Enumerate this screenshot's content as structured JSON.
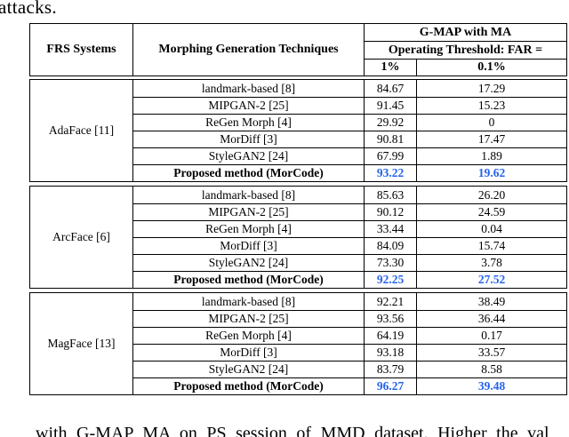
{
  "page": {
    "top_text": "attacks.",
    "caption_bottom": "with G-MAP MA on PS session of MMD dataset. Higher the val"
  },
  "table": {
    "highlight_color": "#2563EB",
    "header": {
      "col_frs": "FRS Systems",
      "col_technique": "Morphing Generation Techniques",
      "span_title": "G-MAP with MA",
      "span_subtitle": "Operating Threshold:  FAR =",
      "col_far1": "1%",
      "col_far01": "0.1%"
    },
    "groups": [
      {
        "frs": "AdaFace [11]",
        "rows": [
          {
            "technique": "landmark-based [8]",
            "far1": "84.67",
            "far01": "17.29"
          },
          {
            "technique": "MIPGAN-2 [25]",
            "far1": "91.45",
            "far01": "15.23"
          },
          {
            "technique": "ReGen Morph [4]",
            "far1": "29.92",
            "far01": "0"
          },
          {
            "technique": "MorDiff [3]",
            "far1": "90.81",
            "far01": "17.47"
          },
          {
            "technique": "StyleGAN2 [24]",
            "far1": "67.99",
            "far01": "1.89"
          },
          {
            "technique": "Proposed method (MorCode)",
            "far1": "93.22",
            "far01": "19.62"
          }
        ]
      },
      {
        "frs": "ArcFace [6]",
        "rows": [
          {
            "technique": "landmark-based [8]",
            "far1": "85.63",
            "far01": "26.20"
          },
          {
            "technique": "MIPGAN-2 [25]",
            "far1": "90.12",
            "far01": "24.59"
          },
          {
            "technique": "ReGen Morph [4]",
            "far1": "33.44",
            "far01": "0.04"
          },
          {
            "technique": "MorDiff [3]",
            "far1": "84.09",
            "far01": "15.74"
          },
          {
            "technique": "StyleGAN2 [24]",
            "far1": "73.30",
            "far01": "3.78"
          },
          {
            "technique": "Proposed method (MorCode)",
            "far1": "92.25",
            "far01": "27.52"
          }
        ]
      },
      {
        "frs": "MagFace [13]",
        "rows": [
          {
            "technique": "landmark-based [8]",
            "far1": "92.21",
            "far01": "38.49"
          },
          {
            "technique": "MIPGAN-2 [25]",
            "far1": "93.56",
            "far01": "36.44"
          },
          {
            "technique": "ReGen Morph [4]",
            "far1": "64.19",
            "far01": "0.17"
          },
          {
            "technique": "MorDiff [3]",
            "far1": "93.18",
            "far01": "33.57"
          },
          {
            "technique": "StyleGAN2 [24]",
            "far1": "83.79",
            "far01": "8.58"
          },
          {
            "technique": "Proposed method (MorCode)",
            "far1": "96.27",
            "far01": "39.48"
          }
        ]
      }
    ]
  },
  "chart_data": {
    "type": "table",
    "title": "G-MAP with MA at Operating Threshold FAR = 1% and 0.1%",
    "columns": [
      "FRS Systems",
      "Morphing Generation Techniques",
      "1%",
      "0.1%"
    ],
    "series": [
      {
        "name": "AdaFace [11]",
        "rows": [
          [
            "landmark-based [8]",
            84.67,
            17.29
          ],
          [
            "MIPGAN-2 [25]",
            91.45,
            15.23
          ],
          [
            "ReGen Morph [4]",
            29.92,
            0
          ],
          [
            "MorDiff [3]",
            90.81,
            17.47
          ],
          [
            "StyleGAN2 [24]",
            67.99,
            1.89
          ],
          [
            "Proposed method (MorCode)",
            93.22,
            19.62
          ]
        ]
      },
      {
        "name": "ArcFace [6]",
        "rows": [
          [
            "landmark-based [8]",
            85.63,
            26.2
          ],
          [
            "MIPGAN-2 [25]",
            90.12,
            24.59
          ],
          [
            "ReGen Morph [4]",
            33.44,
            0.04
          ],
          [
            "MorDiff [3]",
            84.09,
            15.74
          ],
          [
            "StyleGAN2 [24]",
            73.3,
            3.78
          ],
          [
            "Proposed method (MorCode)",
            92.25,
            27.52
          ]
        ]
      },
      {
        "name": "MagFace [13]",
        "rows": [
          [
            "landmark-based [8]",
            92.21,
            38.49
          ],
          [
            "MIPGAN-2 [25]",
            93.56,
            36.44
          ],
          [
            "ReGen Morph [4]",
            64.19,
            0.17
          ],
          [
            "MorDiff [3]",
            93.18,
            33.57
          ],
          [
            "StyleGAN2 [24]",
            83.79,
            8.58
          ],
          [
            "Proposed method (MorCode)",
            96.27,
            39.48
          ]
        ]
      }
    ]
  }
}
